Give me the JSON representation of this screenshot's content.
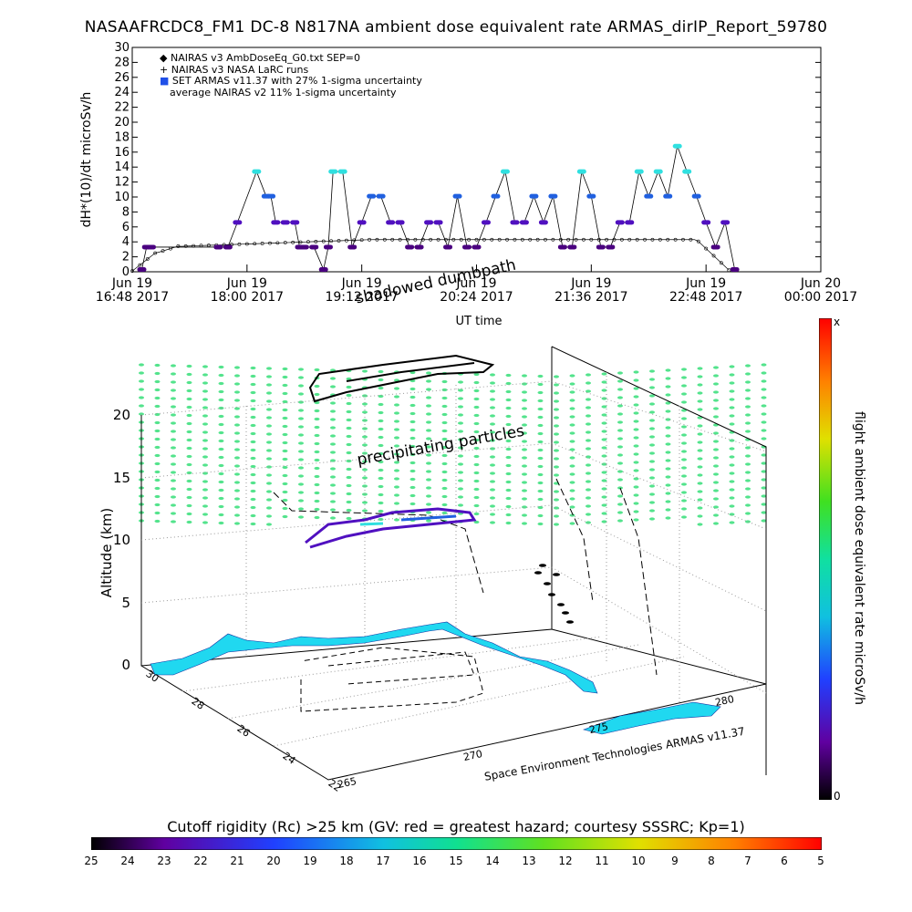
{
  "title": "NASAAFRCDC8_FM1 DC-8   N817NA ambient dose equivalent rate ARMAS_dirIP_Report_59780",
  "chart_data": [
    {
      "type": "scatter",
      "ylabel": "dH*(10)/dt microSv/h",
      "xlabel": "UT time",
      "ylim": [
        0,
        30
      ],
      "yticks": [
        "0",
        "2",
        "4",
        "6",
        "8",
        "10",
        "12",
        "14",
        "16",
        "18",
        "20",
        "22",
        "24",
        "26",
        "28",
        "30"
      ],
      "xticks": [
        {
          "line1": "Jun 19",
          "line2": "16:48 2017"
        },
        {
          "line1": "Jun 19",
          "line2": "18:00 2017"
        },
        {
          "line1": "Jun 19",
          "line2": "19:12 2017"
        },
        {
          "line1": "Jun 19",
          "line2": "20:24 2017"
        },
        {
          "line1": "Jun 19",
          "line2": "21:36 2017"
        },
        {
          "line1": "Jun 19",
          "line2": "22:48 2017"
        },
        {
          "line1": "Jun 20",
          "line2": "00:00 2017"
        }
      ],
      "legend": [
        {
          "symbol": "◆",
          "text": "NAIRAS v3 AmbDoseEq_G0.txt SEP=0"
        },
        {
          "symbol": "+",
          "text": "NAIRAS v3 NASA LaRC runs"
        },
        {
          "symbol": "■",
          "text": "SET ARMAS v11.37 with 27% 1-sigma uncertainty",
          "color": "#2050e8"
        },
        {
          "symbol": "",
          "text": "average NAIRAS v2 11% 1-sigma uncertainty"
        }
      ],
      "series_armas_x_hours": [
        0.1,
        0.15,
        0.2,
        0.9,
        1.0,
        1.1,
        1.3,
        1.4,
        1.45,
        1.5,
        1.6,
        1.7,
        1.75,
        1.8,
        1.9,
        2.0,
        2.05,
        2.1,
        2.2,
        2.3,
        2.4,
        2.5,
        2.6,
        2.7,
        2.8,
        2.9,
        3.0,
        3.1,
        3.2,
        3.3,
        3.4,
        3.5,
        3.6,
        3.7,
        3.8,
        3.9,
        4.0,
        4.1,
        4.2,
        4.3,
        4.4,
        4.5,
        4.6,
        4.7,
        4.8,
        4.9,
        5.0,
        5.1,
        5.2,
        5.3,
        5.4,
        5.5,
        5.6,
        5.7,
        5.8,
        5.9,
        6.0,
        6.1,
        6.2,
        6.3
      ],
      "series_armas_values": [
        0.3,
        3.3,
        3.3,
        3.3,
        3.3,
        6.6,
        13.4,
        10.1,
        10.1,
        6.6,
        6.6,
        6.6,
        3.3,
        3.3,
        3.3,
        0.3,
        3.3,
        13.4,
        13.4,
        3.3,
        6.6,
        10.1,
        10.1,
        6.6,
        6.6,
        3.3,
        3.3,
        6.6,
        6.6,
        3.3,
        10.1,
        3.3,
        3.3,
        6.6,
        10.1,
        13.4,
        6.6,
        6.6,
        10.1,
        6.6,
        10.1,
        3.3,
        3.3,
        13.4,
        10.1,
        3.3,
        3.3,
        6.6,
        6.6,
        13.4,
        10.1,
        13.4,
        10.1,
        16.8,
        13.4,
        10.1,
        6.6,
        3.3,
        6.6,
        0.3
      ],
      "series_nairas_values_note": "flat ~3.3-4.3 microSv/h during cruise"
    },
    {
      "type": "scatter",
      "ylabel": "Altitude (km)",
      "zticks": [
        "0",
        "5",
        "10",
        "15",
        "20"
      ],
      "lat_ticks": [
        "30",
        "28",
        "26",
        "24",
        "22"
      ],
      "lon_ticks": [
        "265",
        "270",
        "275",
        "280"
      ],
      "annotations": [
        "shadowed dumbpath",
        "precipitating particles"
      ],
      "credit": "Space Environment Technologies ARMAS v11.37"
    }
  ],
  "colorbar_right": {
    "label": "flight ambient dose equivalent rate microSv/h",
    "top": "x",
    "bottom": "0"
  },
  "colorbar_bottom": {
    "title": "Cutoff rigidity (Rc) >25 km (GV: red = greatest hazard; courtesy SSSRC; Kp=1)",
    "ticks": [
      "25",
      "24",
      "23",
      "22",
      "21",
      "20",
      "19",
      "18",
      "17",
      "16",
      "15",
      "14",
      "13",
      "12",
      "11",
      "10",
      "9",
      "8",
      "7",
      "6",
      "5"
    ]
  },
  "colors": {
    "armas_high": "#30e0e0",
    "armas_mid": "#2060e0",
    "armas_low": "#5010c0",
    "nairas": "#000000",
    "land": "#20d8f0",
    "grid_dots": "#40e080"
  }
}
